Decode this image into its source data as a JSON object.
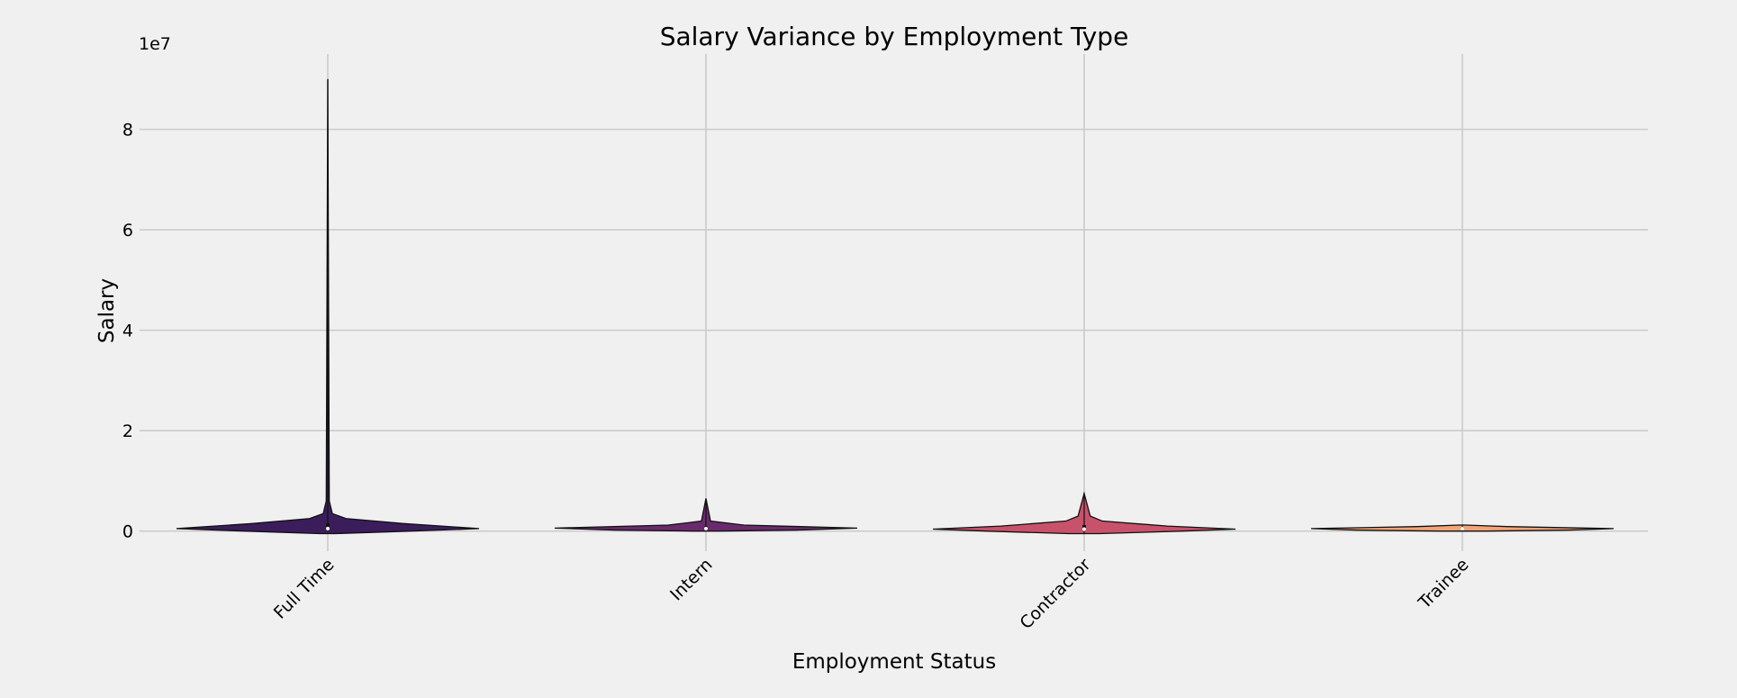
{
  "chart_data": {
    "type": "violin",
    "title": "Salary Variance by Employment Type",
    "xlabel": "Employment Status",
    "ylabel": "Salary",
    "y_offset_label": "1e7",
    "ylim": [
      -0.4,
      9.5
    ],
    "yticks": [
      0,
      2,
      4,
      6,
      8
    ],
    "grid": true,
    "categories": [
      "Full Time",
      "Intern",
      "Contractor",
      "Trainee"
    ],
    "colors": [
      "#3b1d5c",
      "#6b2a6e",
      "#c9526b",
      "#f2a477"
    ],
    "violins": [
      {
        "category": "Full Time",
        "min": 0.0,
        "max": 9.0,
        "median": 0.05,
        "q1": 0.02,
        "q3": 0.15,
        "density": [
          [
            -0.05,
            0.05
          ],
          [
            0.0,
            0.55
          ],
          [
            0.05,
            1.0
          ],
          [
            0.15,
            0.5
          ],
          [
            0.25,
            0.12
          ],
          [
            0.35,
            0.03
          ],
          [
            0.6,
            0.01
          ],
          [
            9.0,
            0.0
          ]
        ]
      },
      {
        "category": "Intern",
        "min": 0.0,
        "max": 0.65,
        "median": 0.05,
        "q1": 0.02,
        "q3": 0.1,
        "density": [
          [
            0.0,
            0.1
          ],
          [
            0.02,
            0.6
          ],
          [
            0.06,
            1.0
          ],
          [
            0.12,
            0.25
          ],
          [
            0.2,
            0.03
          ],
          [
            0.65,
            0.0
          ]
        ]
      },
      {
        "category": "Contractor",
        "min": -0.05,
        "max": 0.75,
        "median": 0.04,
        "q1": 0.01,
        "q3": 0.12,
        "density": [
          [
            -0.05,
            0.1
          ],
          [
            0.0,
            0.65
          ],
          [
            0.04,
            1.0
          ],
          [
            0.1,
            0.55
          ],
          [
            0.2,
            0.12
          ],
          [
            0.3,
            0.04
          ],
          [
            0.75,
            0.0
          ]
        ]
      },
      {
        "category": "Trainee",
        "min": 0.0,
        "max": 0.12,
        "median": 0.05,
        "q1": 0.03,
        "q3": 0.08,
        "density": [
          [
            0.0,
            0.15
          ],
          [
            0.02,
            0.7
          ],
          [
            0.05,
            1.0
          ],
          [
            0.09,
            0.3
          ],
          [
            0.12,
            0.02
          ]
        ]
      }
    ]
  }
}
